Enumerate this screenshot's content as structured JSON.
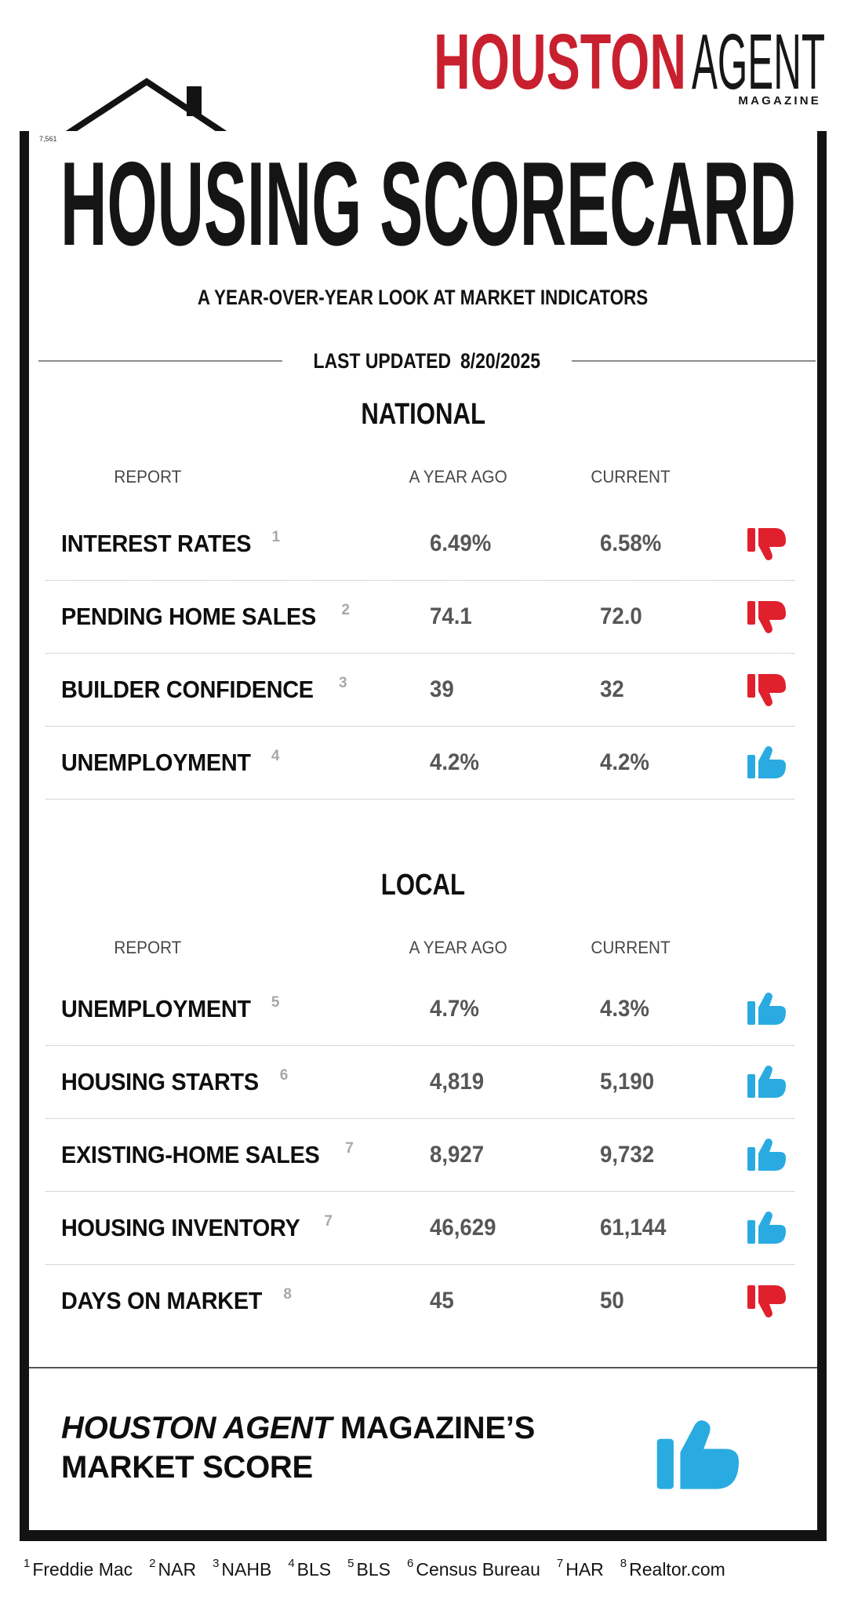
{
  "logo": {
    "houston": "HOUSTON",
    "agent": "AGENT",
    "magazine": "MAGAZINE",
    "brand_red": "#C8202F"
  },
  "corner_note": "7,561",
  "header": {
    "title": "HOUSING SCORECARD",
    "subtitle": "A YEAR-OVER-YEAR LOOK AT MARKET INDICATORS",
    "last_updated_label": "LAST UPDATED",
    "last_updated_date": "8/20/2025"
  },
  "chart_data": {
    "type": "table",
    "columns": {
      "report": "REPORT",
      "year_ago": "A YEAR AGO",
      "current": "CURRENT"
    },
    "tables": [
      {
        "title": "NATIONAL",
        "rows": [
          {
            "label": "INTEREST RATES",
            "sup": "1",
            "year_ago": "6.49%",
            "current": "6.58%",
            "trend": "down"
          },
          {
            "label": "PENDING HOME SALES",
            "sup": "2",
            "year_ago": "74.1",
            "current": "72.0",
            "trend": "down"
          },
          {
            "label": "BUILDER CONFIDENCE",
            "sup": "3",
            "year_ago": "39",
            "current": "32",
            "trend": "down"
          },
          {
            "label": "UNEMPLOYMENT",
            "sup": "4",
            "year_ago": "4.2%",
            "current": "4.2%",
            "trend": "up"
          }
        ],
        "separator_after_last_row": true
      },
      {
        "title": "LOCAL",
        "rows": [
          {
            "label": "UNEMPLOYMENT",
            "sup": "5",
            "year_ago": "4.7%",
            "current": "4.3%",
            "trend": "up"
          },
          {
            "label": "HOUSING STARTS",
            "sup": "6",
            "year_ago": "4,819",
            "current": "5,190",
            "trend": "up"
          },
          {
            "label": "EXISTING-HOME SALES",
            "sup": "7",
            "year_ago": "8,927",
            "current": "9,732",
            "trend": "up"
          },
          {
            "label": "HOUSING INVENTORY",
            "sup": "7",
            "year_ago": "46,629",
            "current": "61,144",
            "trend": "up"
          },
          {
            "label": "DAYS ON MARKET",
            "sup": "8",
            "year_ago": "45",
            "current": "50",
            "trend": "down"
          }
        ],
        "separator_after_last_row": false
      }
    ]
  },
  "market_score": {
    "brand_italic": "HOUSTON AGENT",
    "rest_line1": "MAGAZINE’S",
    "line2": "MARKET SCORE",
    "trend": "up"
  },
  "footnotes": [
    {
      "sup": "1",
      "label": "Freddie Mac"
    },
    {
      "sup": "2",
      "label": "NAR"
    },
    {
      "sup": "3",
      "label": "NAHB"
    },
    {
      "sup": "4",
      "label": "BLS"
    },
    {
      "sup": "5",
      "label": "BLS"
    },
    {
      "sup": "6",
      "label": "Census Bureau"
    },
    {
      "sup": "7",
      "label": "HAR"
    },
    {
      "sup": "8",
      "label": "Realtor.com"
    }
  ],
  "colors": {
    "thumb_up_blue": "#29ABE2",
    "thumb_down_red": "#E0202D",
    "brand_red": "#C8202F",
    "border_black": "#131313"
  }
}
